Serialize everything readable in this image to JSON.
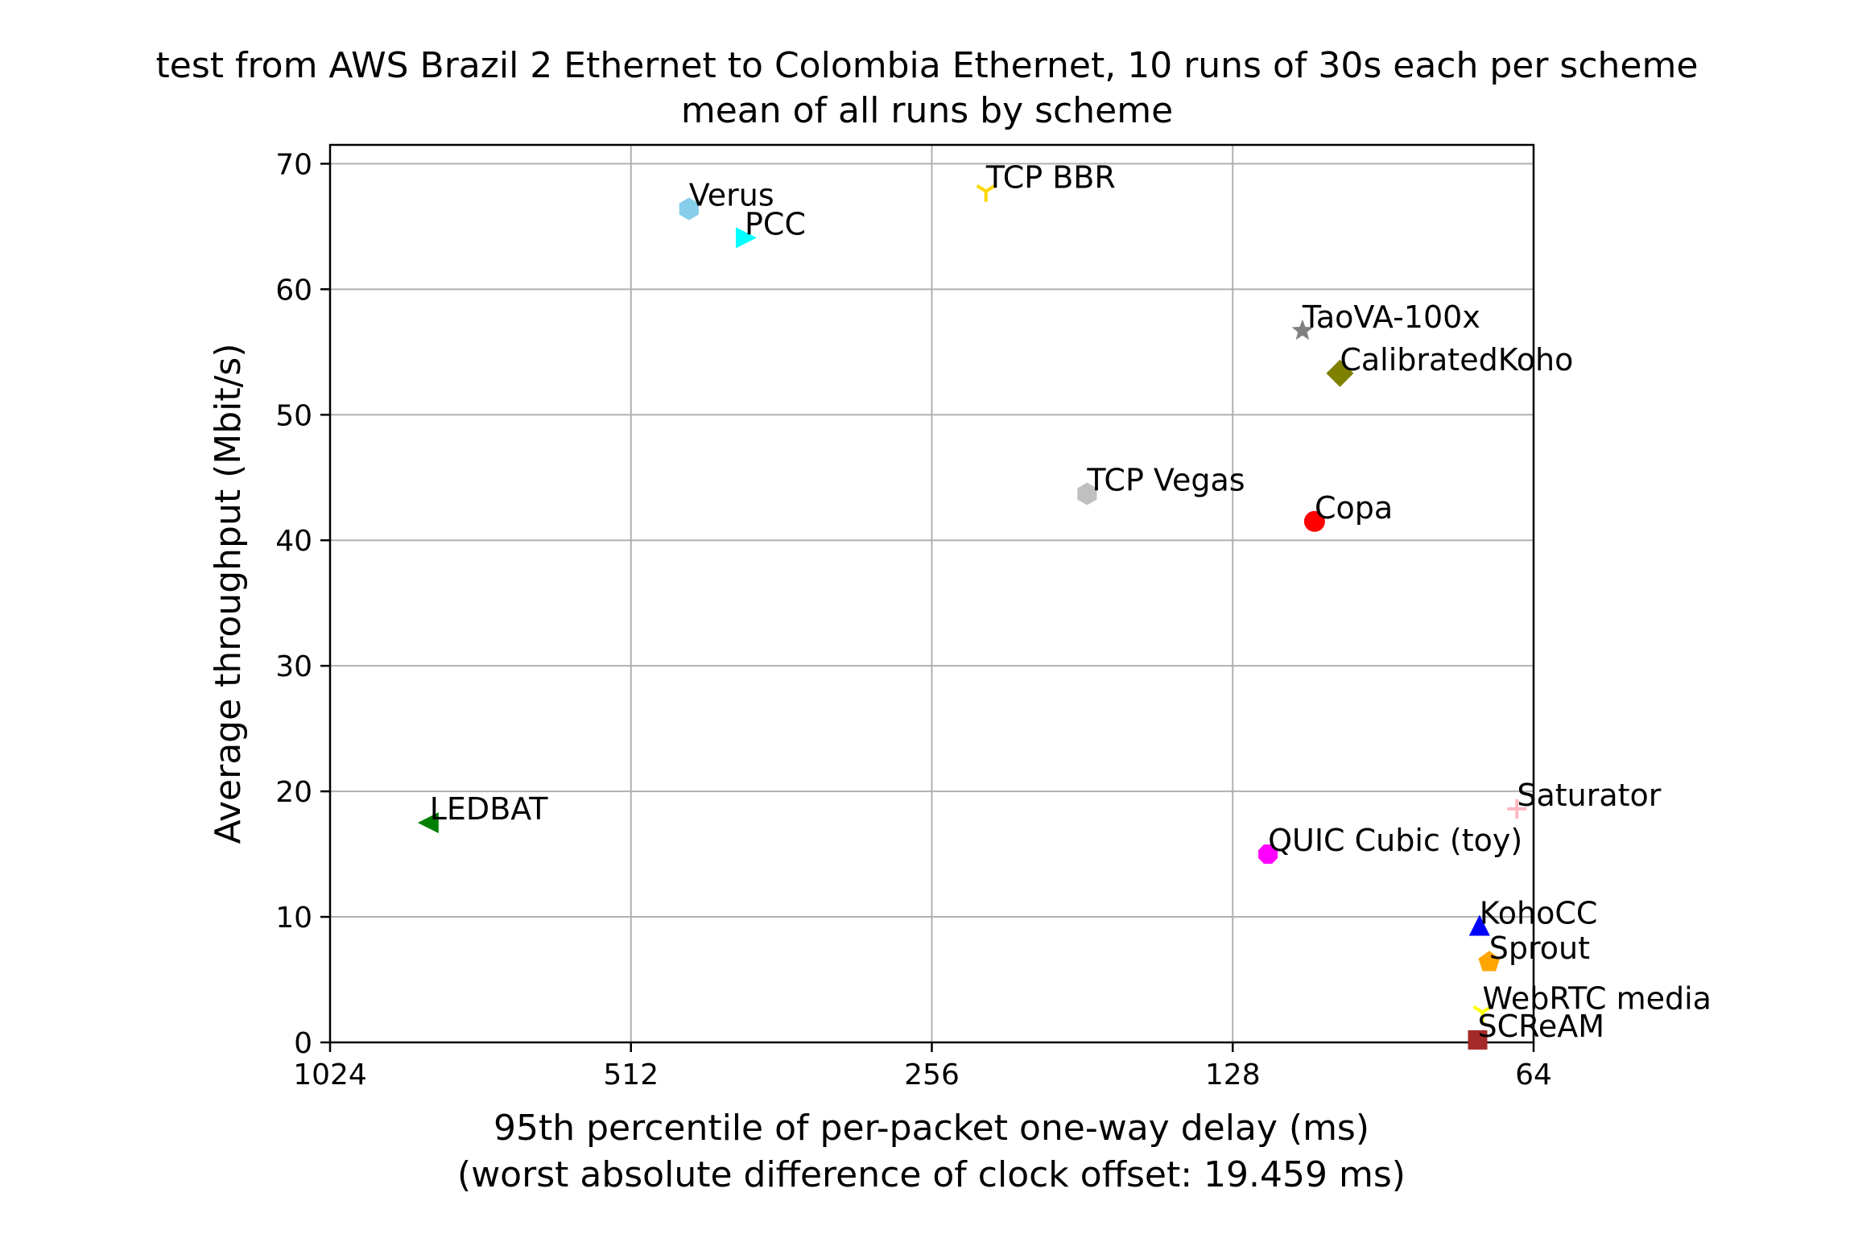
{
  "chart_data": {
    "type": "scatter",
    "title": "test from AWS Brazil 2 Ethernet to Colombia Ethernet, 10 runs of 30s each per scheme",
    "subtitle": "mean of all runs by scheme",
    "xlabel": "95th percentile of per-packet one-way delay (ms)",
    "xlabel2": "(worst absolute difference of clock offset: 19.459 ms)",
    "ylabel": "Average throughput (Mbit/s)",
    "x_scale": "log2",
    "x_inverted": true,
    "xlim": [
      1024,
      64
    ],
    "ylim": [
      0,
      71.5
    ],
    "x_ticks": [
      1024,
      512,
      256,
      128,
      64
    ],
    "x_tick_labels": [
      "1024",
      "512",
      "256",
      "128",
      "64"
    ],
    "y_ticks": [
      0,
      10,
      20,
      30,
      40,
      50,
      60,
      70
    ],
    "y_tick_labels": [
      "0",
      "10",
      "20",
      "30",
      "40",
      "50",
      "60",
      "70"
    ],
    "grid": true,
    "points": [
      {
        "label": "Verus",
        "x": 448,
        "y": 66.4,
        "marker": "hexagon",
        "color": "#87ceeb"
      },
      {
        "label": "PCC",
        "x": 394,
        "y": 64.1,
        "marker": "triangle-right",
        "color": "#00ffff"
      },
      {
        "label": "TCP BBR",
        "x": 226,
        "y": 67.8,
        "marker": "tri-down",
        "color": "#ffd700"
      },
      {
        "label": "TaoVA-100x",
        "x": 109,
        "y": 56.7,
        "marker": "star",
        "color": "#808080"
      },
      {
        "label": "CalibratedKoho",
        "x": 100,
        "y": 53.3,
        "marker": "diamond",
        "color": "#808000"
      },
      {
        "label": "TCP Vegas",
        "x": 179,
        "y": 43.7,
        "marker": "hexagon",
        "color": "#c0c0c0"
      },
      {
        "label": "Copa",
        "x": 106,
        "y": 41.5,
        "marker": "circle",
        "color": "#ff0000"
      },
      {
        "label": "LEDBAT",
        "x": 814,
        "y": 17.5,
        "marker": "triangle-left",
        "color": "#008000"
      },
      {
        "label": "Saturator",
        "x": 66.5,
        "y": 18.6,
        "marker": "plus",
        "color": "#ffb6c1"
      },
      {
        "label": "QUIC Cubic (toy)",
        "x": 118,
        "y": 15.0,
        "marker": "octagon",
        "color": "#ff00ff"
      },
      {
        "label": "KohoCC",
        "x": 72.5,
        "y": 9.2,
        "marker": "triangle-up",
        "color": "#0000ff"
      },
      {
        "label": "Sprout",
        "x": 70.9,
        "y": 6.4,
        "marker": "pentagon",
        "color": "#ffa500"
      },
      {
        "label": "WebRTC media",
        "x": 72.0,
        "y": 2.4,
        "marker": "tri-down",
        "color": "#ffff00"
      },
      {
        "label": "SCReAM",
        "x": 72.8,
        "y": 0.2,
        "marker": "square",
        "color": "#a52a2a"
      }
    ]
  }
}
